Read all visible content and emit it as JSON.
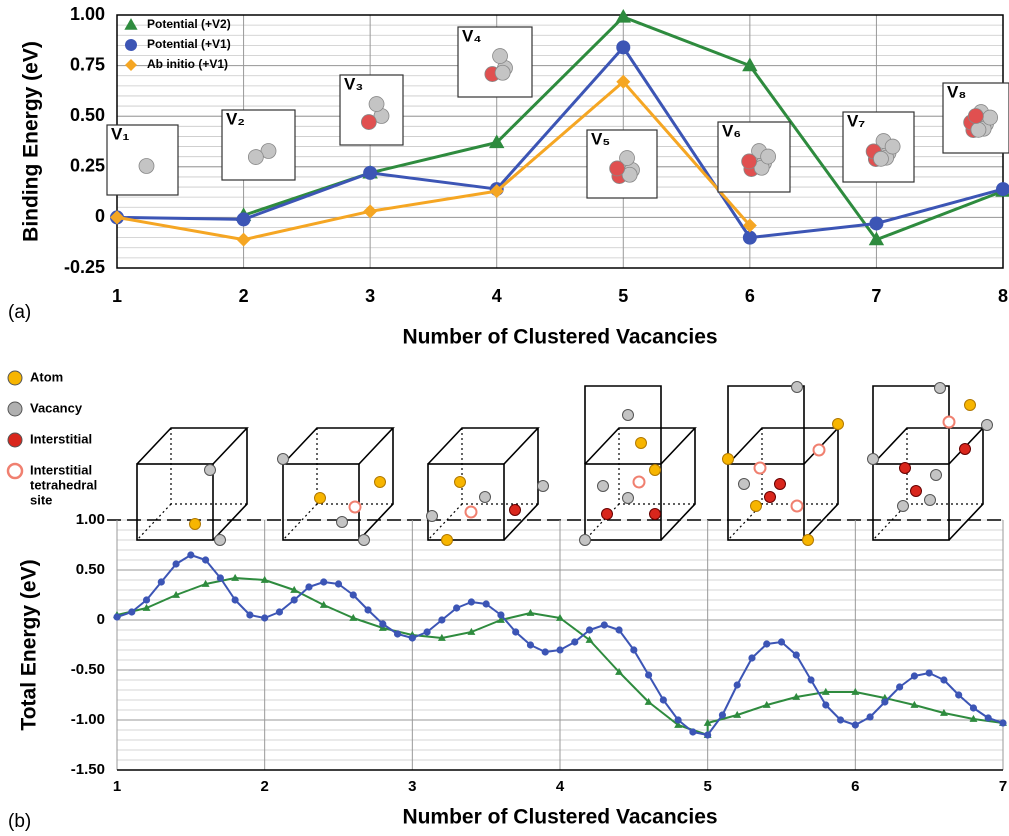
{
  "chart_data": [
    {
      "type": "line",
      "panel_label": "(a)",
      "ylabel": "Binding Energy (eV)",
      "xlabel": "Number of Clustered Vacancies",
      "x": [
        1,
        2,
        3,
        4,
        5,
        6,
        7,
        8
      ],
      "xlim": [
        1,
        8
      ],
      "xticks": [
        1,
        2,
        3,
        4,
        5,
        6,
        7,
        8
      ],
      "ylim": [
        -0.25,
        1
      ],
      "yticks": [
        {
          "value": 1,
          "label": "1.00"
        },
        {
          "value": 0.75,
          "label": "0.75"
        },
        {
          "value": 0.5,
          "label": "0.50"
        },
        {
          "value": 0.25,
          "label": "0.25"
        },
        0,
        -0.25
      ],
      "grid": true,
      "minor_grid": 0.05,
      "legend": "upper left",
      "series": [
        {
          "name": "Potential (+V2)",
          "color": "#2e8b3e",
          "marker": "triangle",
          "values": [
            null,
            0.01,
            0.22,
            0.37,
            0.99,
            0.75,
            -0.11,
            0.13
          ]
        },
        {
          "name": "Potential (+V1)",
          "color": "#3c55b5",
          "marker": "circle",
          "values": [
            0,
            -0.01,
            0.22,
            0.14,
            0.84,
            -0.1,
            -0.03,
            0.14
          ]
        },
        {
          "name": "Ab initio  (+V1)",
          "color": "#f5a623",
          "marker": "diamond",
          "values": [
            0,
            -0.11,
            0.03,
            0.13,
            0.67,
            -0.04,
            null,
            null
          ]
        }
      ],
      "annotations": [
        "V₁",
        "V₂",
        "V₃",
        "V₄",
        "V₅",
        "V₆",
        "V₇",
        "V₈"
      ]
    },
    {
      "type": "line",
      "panel_label": "(b)",
      "ylabel": "Total Energy (eV)",
      "xlabel": "Number of Clustered Vacancies",
      "xlim": [
        1,
        7
      ],
      "xticks": [
        1,
        2,
        3,
        4,
        5,
        6,
        7
      ],
      "ylim": [
        -1.5,
        1
      ],
      "yticks": [
        {
          "value": 1,
          "label": "1.00"
        },
        {
          "value": 0.5,
          "label": "0.50"
        },
        0,
        {
          "value": -0.5,
          "label": "-0.50"
        },
        {
          "value": -1,
          "label": "-1.00"
        },
        {
          "value": -1.5,
          "label": "-1.50"
        }
      ],
      "grid": true,
      "minor_grid": 0.1,
      "diagram_legend": [
        {
          "label": [
            "Atom"
          ],
          "color": "#f7b500",
          "style": "filled"
        },
        {
          "label": [
            "Vacancy"
          ],
          "color": "#b0b0b0",
          "style": "filled"
        },
        {
          "label": [
            "Interstitial"
          ],
          "color": "#d9261c",
          "style": "filled"
        },
        {
          "label": [
            "Interstitial",
            "tetrahedral",
            "site"
          ],
          "color": "#f08070",
          "style": "ring"
        }
      ],
      "series": [
        {
          "color": "#2e8b3e",
          "marker": "triangle",
          "x": [
            1,
            1.2,
            1.4,
            1.6,
            1.8,
            2,
            2.2,
            2.4,
            2.6,
            2.8,
            3,
            3.2,
            3.4,
            3.6,
            3.8,
            4,
            4.2,
            4.4,
            4.6,
            4.8,
            5,
            5,
            5.2,
            5.4,
            5.6,
            5.8,
            6,
            6.2,
            6.4,
            6.6,
            6.8,
            7
          ],
          "values": [
            0.05,
            0.12,
            0.25,
            0.36,
            0.42,
            0.4,
            0.3,
            0.15,
            0.02,
            -0.08,
            -0.15,
            -0.18,
            -0.12,
            0,
            0.07,
            0.02,
            -0.2,
            -0.52,
            -0.82,
            -1.05,
            -1.15,
            -1.03,
            -0.95,
            -0.85,
            -0.77,
            -0.72,
            -0.72,
            -0.78,
            -0.85,
            -0.93,
            -0.99,
            -1.03
          ]
        },
        {
          "color": "#3c55b5",
          "marker": "circle",
          "x": [
            1,
            1.1,
            1.2,
            1.3,
            1.4,
            1.5,
            1.6,
            1.7,
            1.8,
            1.9,
            2,
            2.1,
            2.2,
            2.3,
            2.4,
            2.5,
            2.6,
            2.7,
            2.8,
            2.9,
            3,
            3.1,
            3.2,
            3.3,
            3.4,
            3.5,
            3.6,
            3.7,
            3.8,
            3.9,
            4,
            4.1,
            4.2,
            4.3,
            4.4,
            4.5,
            4.6,
            4.7,
            4.8,
            4.9,
            5,
            5.1,
            5.2,
            5.3,
            5.4,
            5.5,
            5.6,
            5.7,
            5.8,
            5.9,
            6,
            6.1,
            6.2,
            6.3,
            6.4,
            6.5,
            6.6,
            6.7,
            6.8,
            6.9,
            7
          ],
          "values": [
            0.03,
            0.08,
            0.2,
            0.38,
            0.56,
            0.65,
            0.6,
            0.42,
            0.2,
            0.05,
            0.02,
            0.08,
            0.2,
            0.33,
            0.38,
            0.36,
            0.25,
            0.1,
            -0.04,
            -0.14,
            -0.18,
            -0.12,
            0,
            0.12,
            0.18,
            0.16,
            0.05,
            -0.12,
            -0.25,
            -0.32,
            -0.3,
            -0.22,
            -0.1,
            -0.05,
            -0.1,
            -0.3,
            -0.55,
            -0.8,
            -1,
            -1.12,
            -1.15,
            -0.95,
            -0.65,
            -0.38,
            -0.24,
            -0.22,
            -0.35,
            -0.6,
            -0.85,
            -1,
            -1.05,
            -0.97,
            -0.82,
            -0.67,
            -0.56,
            -0.53,
            -0.6,
            -0.75,
            -0.88,
            -0.98,
            -1.03
          ]
        }
      ]
    }
  ]
}
